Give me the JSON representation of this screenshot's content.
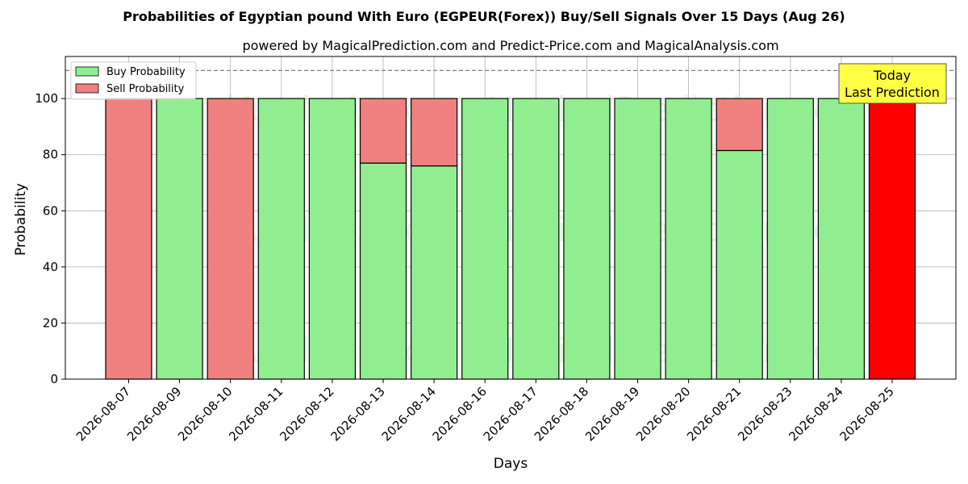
{
  "chart_data": {
    "type": "bar",
    "stacked": true,
    "title": "Probabilities of Egyptian pound With Euro (EGPEUR(Forex)) Buy/Sell Signals Over 15 Days (Aug 26)",
    "subtitle": "powered by MagicalPrediction.com and Predict-Price.com and MagicalAnalysis.com",
    "xlabel": "Days",
    "ylabel": "Probability",
    "ylim": [
      0,
      115
    ],
    "yticks": [
      0,
      20,
      40,
      60,
      80,
      100
    ],
    "grid": true,
    "legend_position": "top-left",
    "reference_line": 110,
    "categories": [
      "2026-08-07",
      "2026-08-09",
      "2026-08-10",
      "2026-08-11",
      "2026-08-12",
      "2026-08-13",
      "2026-08-14",
      "2026-08-16",
      "2026-08-17",
      "2026-08-18",
      "2026-08-19",
      "2026-08-20",
      "2026-08-21",
      "2026-08-23",
      "2026-08-24",
      "2026-08-25"
    ],
    "series": [
      {
        "name": "Buy Probability",
        "color": "#90ee90",
        "values": [
          0,
          100,
          0,
          100,
          100,
          77,
          76,
          100,
          100,
          100,
          100,
          100,
          81.5,
          100,
          100,
          0
        ]
      },
      {
        "name": "Sell Probability",
        "color": "#f08080",
        "values": [
          100,
          0,
          100,
          0,
          0,
          23,
          24,
          0,
          0,
          0,
          0,
          0,
          18.5,
          0,
          0,
          100
        ]
      }
    ],
    "highlight": {
      "category": "2026-08-25",
      "color": "#ff0000"
    },
    "annotation": {
      "line1": "Today",
      "line2": "Last Prediction",
      "background": "#ffff44"
    },
    "watermarks": [
      "MagicalAnalysis.com",
      "MagicalPrediction.com"
    ]
  }
}
